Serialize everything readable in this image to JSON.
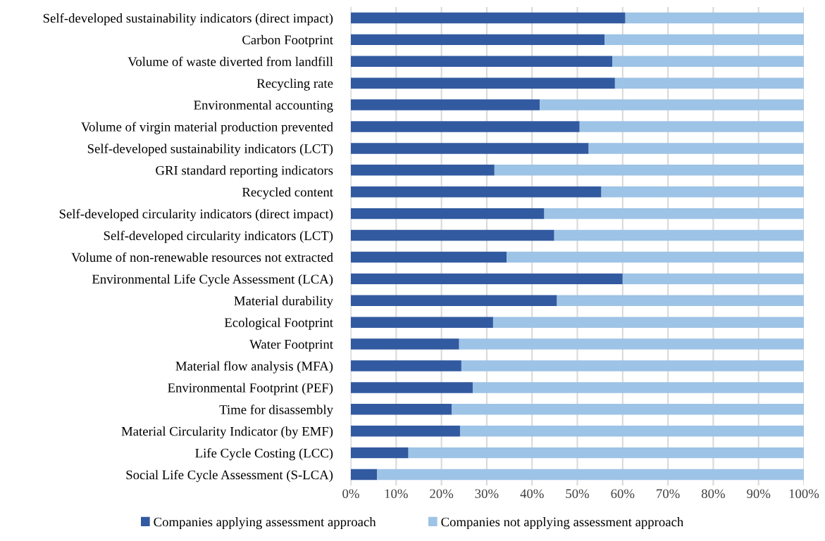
{
  "chart_data": {
    "type": "bar",
    "orientation": "horizontal",
    "stacked": true,
    "categories": [
      "Self-developed sustainability indicators (direct impact)",
      "Carbon Footprint",
      "Volume of waste diverted from landfill",
      "Recycling rate",
      "Environmental accounting",
      "Volume of virgin material production prevented",
      "Self-developed sustainability indicators (LCT)",
      "GRI standard reporting indicators",
      "Recycled content",
      "Self-developed circularity indicators (direct impact)",
      "Self-developed circularity indicators (LCT)",
      "Volume of non-renewable resources not extracted",
      "Environmental Life Cycle Assessment (LCA)",
      "Material durability",
      "Ecological Footprint",
      "Water Footprint",
      "Material flow analysis (MFA)",
      "Environmental Footprint (PEF)",
      "Time for disassembly",
      "Material Circularity Indicator (by EMF)",
      "Life Cycle Costing (LCC)",
      "Social Life Cycle Assessment (S-LCA)"
    ],
    "series": [
      {
        "name": "Companies applying assessment approach",
        "color": "#325aa0",
        "values": [
          60.6,
          56.0,
          57.7,
          58.3,
          41.7,
          50.5,
          52.5,
          31.7,
          55.3,
          42.7,
          44.9,
          34.4,
          60.0,
          45.5,
          31.4,
          23.9,
          24.4,
          26.9,
          22.3,
          24.1,
          12.7,
          5.8
        ]
      },
      {
        "name": "Companies not applying assessment approach",
        "color": "#9dc3e6",
        "values": [
          39.4,
          44.0,
          42.3,
          41.7,
          58.3,
          49.5,
          47.5,
          68.3,
          44.7,
          57.3,
          55.1,
          65.6,
          40.0,
          54.5,
          68.6,
          76.1,
          75.6,
          73.1,
          77.7,
          75.9,
          87.3,
          94.2
        ]
      }
    ],
    "xlim": [
      0,
      100
    ],
    "xticks": [
      {
        "value": 0,
        "label": "0%"
      },
      {
        "value": 10,
        "label": "10%"
      },
      {
        "value": 20,
        "label": "20%"
      },
      {
        "value": 30,
        "label": "30%"
      },
      {
        "value": 40,
        "label": "40%"
      },
      {
        "value": 50,
        "label": "50%"
      },
      {
        "value": 60,
        "label": "60%"
      },
      {
        "value": 70,
        "label": "70%"
      },
      {
        "value": 80,
        "label": "80%"
      },
      {
        "value": 90,
        "label": "90%"
      },
      {
        "value": 100,
        "label": "100%"
      }
    ],
    "grid": "x",
    "legend": "bottom"
  }
}
